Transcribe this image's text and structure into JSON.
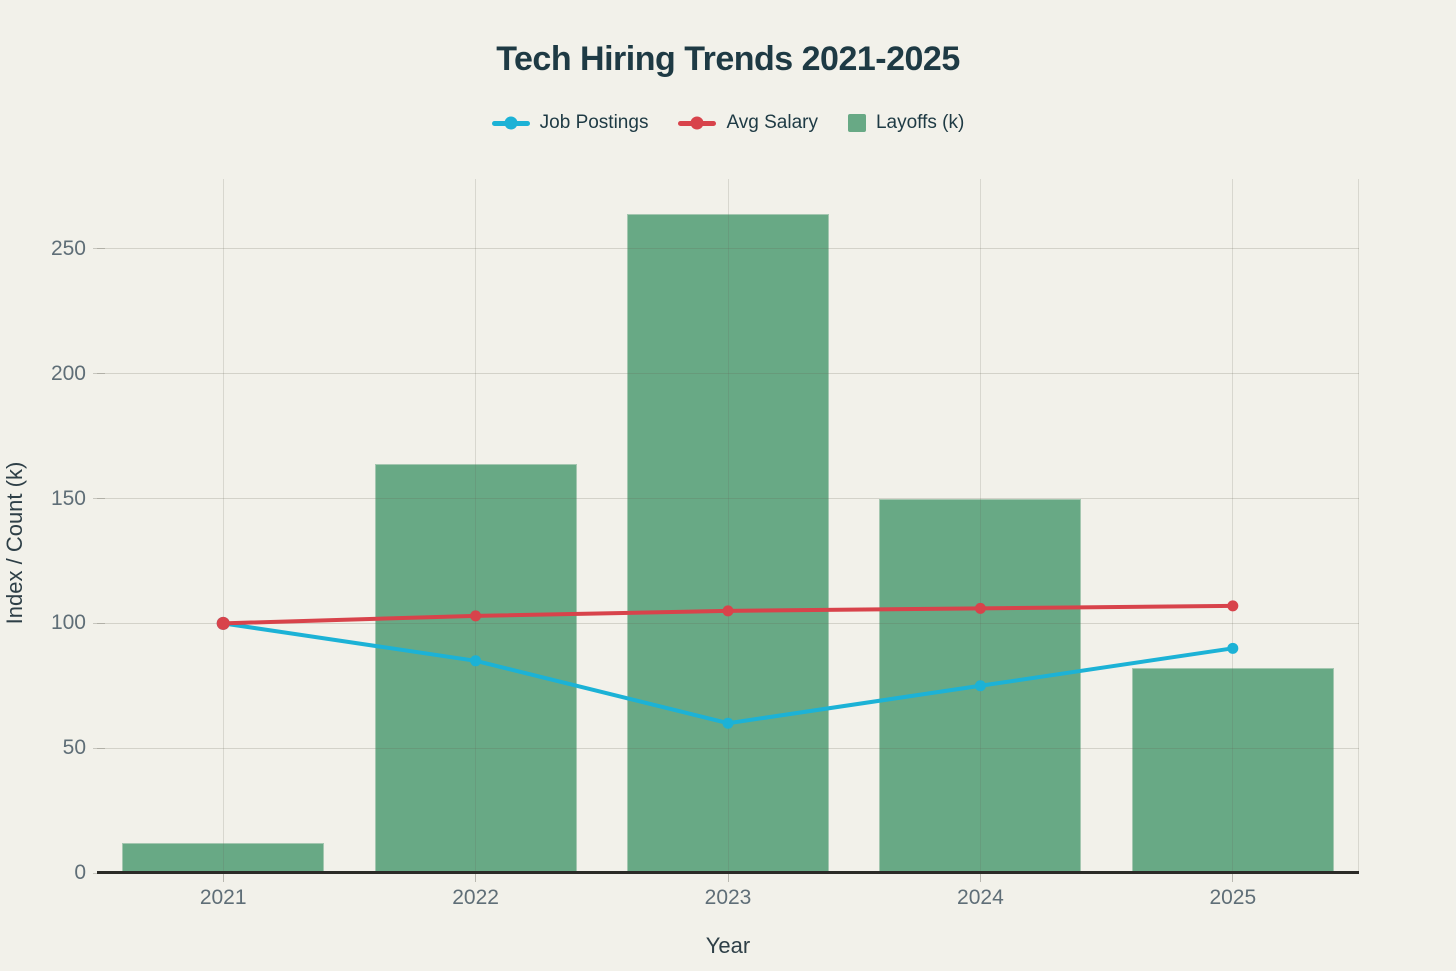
{
  "title": "Tech Hiring Trends 2021-2025",
  "legend": {
    "items": [
      {
        "label": "Job Postings",
        "marker": "line-dot",
        "color": "#1cb2d6"
      },
      {
        "label": "Avg Salary",
        "marker": "line-dot",
        "color": "#d8434b"
      },
      {
        "label": "Layoffs (k)",
        "marker": "square",
        "color": "#68a985"
      }
    ]
  },
  "colors": {
    "background": "#f2f1ea",
    "title_text": "#1e3a44",
    "tick_text": "#5f6e77",
    "axis_title_text": "#2e3f47",
    "axis_line": "#2b2b27",
    "job_postings": "#1cb2d6",
    "avg_salary": "#d8434b",
    "layoffs": "#68a985"
  },
  "chart_data": {
    "type": "bar",
    "subtype": "bar-and-line combo",
    "title": "Tech Hiring Trends 2021-2025",
    "xlabel": "Year",
    "ylabel": "Index / Count (k)",
    "categories": [
      "2021",
      "2022",
      "2023",
      "2024",
      "2025"
    ],
    "series": [
      {
        "name": "Job Postings",
        "type": "line",
        "color": "#1cb2d6",
        "values": [
          100,
          85,
          60,
          75,
          90
        ]
      },
      {
        "name": "Avg Salary",
        "type": "line",
        "color": "#d8434b",
        "values": [
          100,
          103,
          105,
          106,
          107
        ]
      },
      {
        "name": "Layoffs (k)",
        "type": "bar",
        "color": "#68a985",
        "values": [
          12,
          164,
          264,
          150,
          82
        ]
      }
    ],
    "ylim": [
      0,
      278
    ],
    "yticks": [
      0,
      50,
      100,
      150,
      200,
      250
    ],
    "grid": true,
    "legend_position": "top-center"
  }
}
